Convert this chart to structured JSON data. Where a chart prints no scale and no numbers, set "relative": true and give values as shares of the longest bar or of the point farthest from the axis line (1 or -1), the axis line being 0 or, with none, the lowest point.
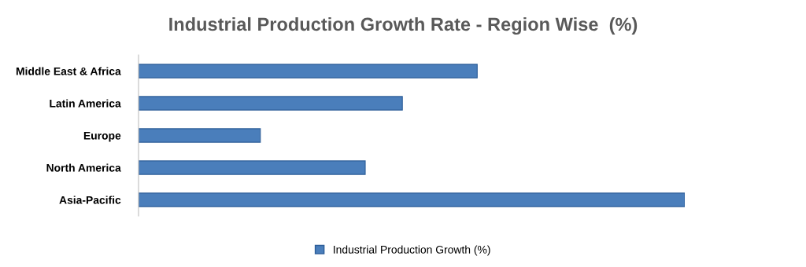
{
  "chart_data": {
    "type": "bar",
    "orientation": "horizontal",
    "relative": true,
    "title": "Industrial Production Growth Rate - Region Wise  (%)",
    "categories": [
      "Middle East & Africa",
      "Latin America",
      "Europe",
      "North America",
      "Asia-Pacific"
    ],
    "series": [
      {
        "name": "Industrial Production Growth (%)",
        "color": "#4a7ebb",
        "values": [
          0.62,
          0.483,
          0.223,
          0.415,
          1
        ]
      }
    ],
    "legend": "bottom",
    "grid": false
  }
}
